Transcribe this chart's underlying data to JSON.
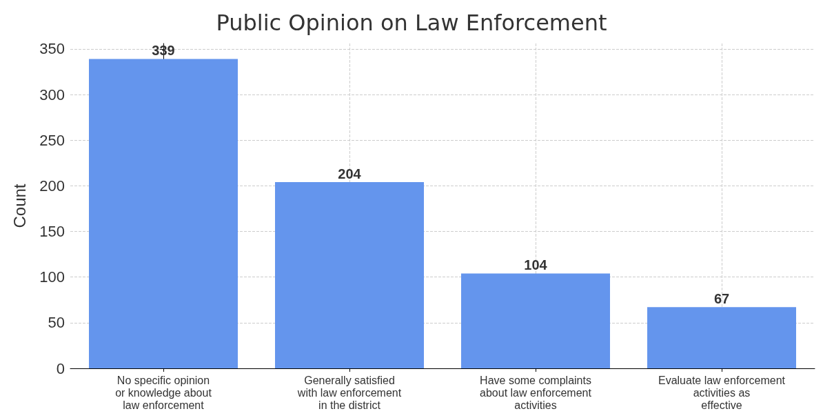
{
  "chart_data": {
    "type": "bar",
    "title": "Public Opinion on Law Enforcement",
    "ylabel": "Count",
    "categories": [
      "No specific opinion\nor knowledge about\nlaw enforcement",
      "Generally satisfied\nwith law enforcement\nin the district",
      "Have some complaints\nabout law enforcement\nactivities",
      "Evaluate law enforcement\nactivities as\neffective"
    ],
    "values": [
      339,
      204,
      104,
      67
    ],
    "color": "#6495ed",
    "data_labels": true,
    "ylim": [
      0,
      356
    ],
    "yticks": [
      0,
      50,
      100,
      150,
      200,
      250,
      300,
      350
    ],
    "grid": true
  }
}
